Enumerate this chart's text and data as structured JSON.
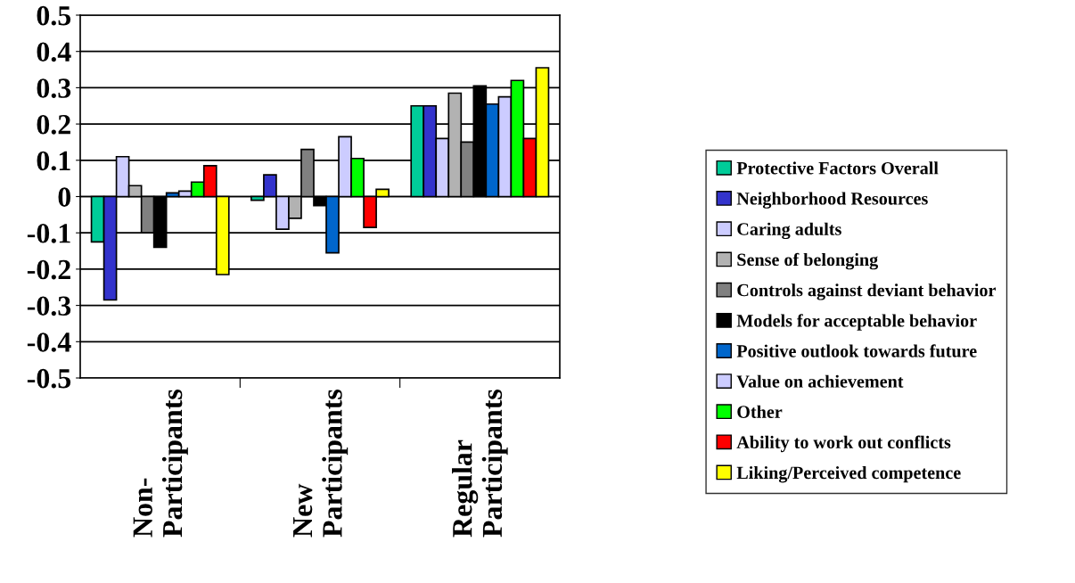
{
  "chart_data": {
    "type": "bar",
    "categories": [
      "Non-\nParticipants",
      "New\nParticipants",
      "Regular\nParticipants"
    ],
    "series": [
      {
        "name": "Protective Factors Overall",
        "color": "#00cc99",
        "values": [
          -0.125,
          -0.01,
          0.25
        ]
      },
      {
        "name": "Neighborhood Resources",
        "color": "#3333cc",
        "values": [
          -0.285,
          0.06,
          0.25
        ]
      },
      {
        "name": "Caring adults",
        "color": "#ccccff",
        "values": [
          0.11,
          -0.09,
          0.16
        ]
      },
      {
        "name": "Sense of belonging",
        "color": "#b2b2b2",
        "values": [
          0.03,
          -0.06,
          0.285
        ]
      },
      {
        "name": "Controls against deviant behavior",
        "color": "#808080",
        "values": [
          -0.1,
          0.13,
          0.15
        ]
      },
      {
        "name": "Models for acceptable behavior",
        "color": "#000000",
        "values": [
          -0.14,
          -0.025,
          0.305
        ]
      },
      {
        "name": "Positive outlook towards future",
        "color": "#0066cc",
        "values": [
          0.01,
          -0.155,
          0.255
        ]
      },
      {
        "name": "Value on achievement",
        "color": "#ccccff",
        "values": [
          0.015,
          0.165,
          0.275
        ]
      },
      {
        "name": "Other",
        "color": "#00ff00",
        "values": [
          0.04,
          0.105,
          0.32
        ]
      },
      {
        "name": "Ability to work out conflicts",
        "color": "#ff0000",
        "values": [
          0.085,
          -0.085,
          0.16
        ]
      },
      {
        "name": "Liking/Perceived competence",
        "color": "#ffff00",
        "values": [
          -0.215,
          0.02,
          0.355
        ]
      }
    ],
    "ylim": [
      -0.5,
      0.5
    ],
    "yticks": [
      -0.5,
      -0.4,
      -0.3,
      -0.2,
      -0.1,
      0,
      0.1,
      0.2,
      0.3,
      0.4,
      0.5
    ],
    "grid": "y",
    "legend": "right"
  }
}
